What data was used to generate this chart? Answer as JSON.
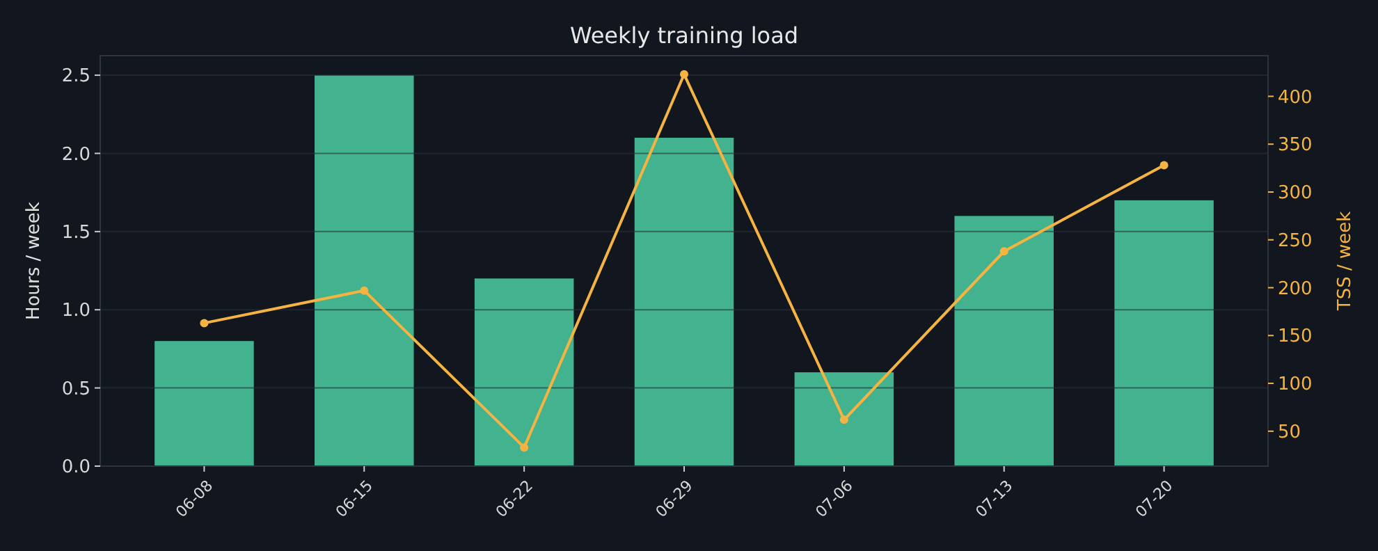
{
  "chart_data": {
    "type": "bar",
    "title": "Weekly training load",
    "ylabel": "Hours / week",
    "y2label": "TSS / week",
    "categories": [
      "06-08",
      "06-15",
      "06-22",
      "06-29",
      "07-06",
      "07-13",
      "07-20"
    ],
    "series": [
      {
        "color": "#43b28f",
        "values": [
          0.8,
          2.5,
          1.2,
          2.1,
          0.6,
          1.6,
          1.7
        ]
      },
      {
        "type": "line",
        "axis": "y2",
        "color": "#f5b342",
        "marker": "circle",
        "values": [
          163,
          197,
          33,
          423,
          62,
          238,
          328
        ]
      }
    ],
    "ylim": [
      0,
      2.625
    ],
    "yticks": [
      {
        "value": 0,
        "label": "0.0"
      },
      {
        "value": 0.5,
        "label": "0.5"
      },
      {
        "value": 1,
        "label": "1.0"
      },
      {
        "value": 1.5,
        "label": "1.5"
      },
      {
        "value": 2,
        "label": "2.0"
      },
      {
        "value": 2.5,
        "label": "2.5"
      }
    ],
    "y2lim": [
      13.5,
      442.5
    ],
    "y2ticks": [
      50,
      100,
      150,
      200,
      250,
      300,
      350,
      400
    ],
    "grid": "y"
  }
}
